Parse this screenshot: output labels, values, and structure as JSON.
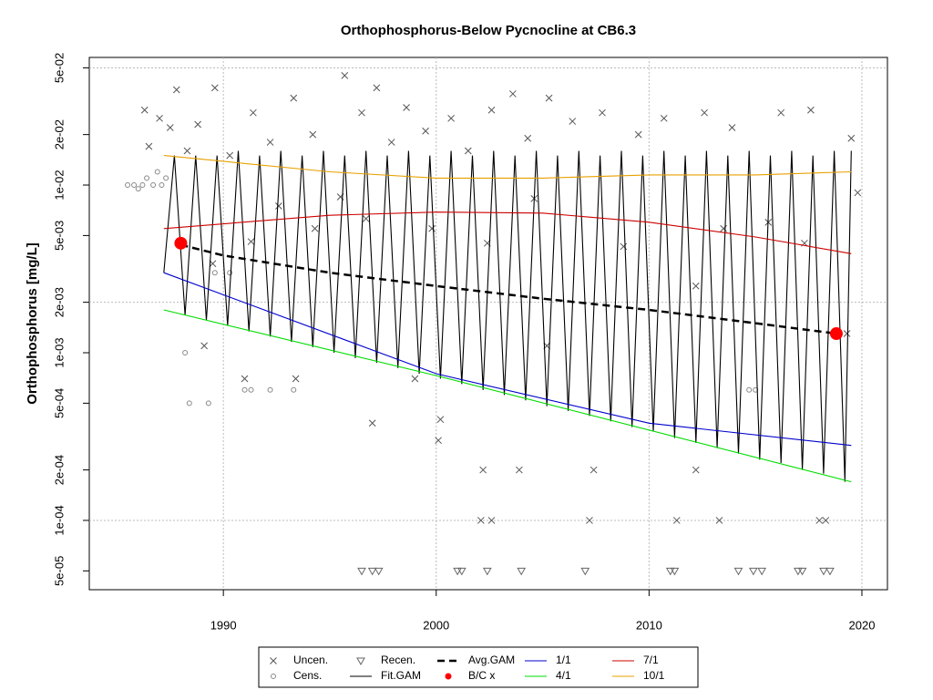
{
  "chart_data": {
    "type": "line",
    "title": "Orthophosphorus-Below Pycnocline at CB6.3",
    "y_label": "Orthophosphorus [mg/L]",
    "log_y": true,
    "grid": true,
    "xlim": [
      1983.7,
      2021.2
    ],
    "xticks": [
      1990,
      2000,
      2010,
      2020
    ],
    "ylim": [
      3.86e-05,
      0.0577
    ],
    "yticks": [
      {
        "value": 5e-05,
        "label": "5e-05"
      },
      {
        "value": 0.0001,
        "label": "1e-04"
      },
      {
        "value": 0.0002,
        "label": "2e-04"
      },
      {
        "value": 0.0005,
        "label": "5e-04"
      },
      {
        "value": 0.001,
        "label": "1e-03"
      },
      {
        "value": 0.002,
        "label": "2e-03"
      },
      {
        "value": 0.005,
        "label": "5e-03"
      },
      {
        "value": 0.01,
        "label": "1e-02"
      },
      {
        "value": 0.02,
        "label": "2e-02"
      },
      {
        "value": 0.05,
        "label": "5e-02"
      }
    ],
    "series": [
      {
        "name": "Uncen.",
        "color": "#555555",
        "mark": "x",
        "x": [
          1986.3,
          1986.5,
          1987,
          1987.5,
          1987.8,
          1988.3,
          1988.8,
          1989.6,
          1990.3,
          1991.4,
          1992.2,
          1993.3,
          1994.2,
          1995.7,
          1996.5,
          1997.2,
          1997.9,
          1998.6,
          1999.5,
          2000.7,
          2001.5,
          2002.6,
          2003.6,
          2004.3,
          2005.3,
          2006.4,
          2007.8,
          2009.5,
          2010.7,
          2012.6,
          2013.9,
          2016.2,
          2017.6,
          2019.5,
          1989.1,
          1991.0,
          1993.4,
          1997.0,
          1999.0,
          2000.2,
          2000.1,
          2002.2,
          2002.1,
          2002.6,
          2003.9,
          2007.2,
          2007.4,
          2011.3,
          2012.2,
          2013.3,
          2018.0,
          2018.3,
          1989.5,
          1991.3,
          1994.3,
          1996.7,
          1999.8,
          2002.4,
          2005.2,
          2008.8,
          2012.2,
          2015.6,
          2019.3,
          1992.6,
          1995.5,
          2004.6,
          2013.5,
          2017.3,
          2019.8
        ],
        "values": [
          0.028,
          0.017,
          0.025,
          0.022,
          0.037,
          0.016,
          0.023,
          0.038,
          0.015,
          0.027,
          0.018,
          0.033,
          0.02,
          0.045,
          0.027,
          0.038,
          0.018,
          0.029,
          0.021,
          0.025,
          0.016,
          0.028,
          0.035,
          0.019,
          0.033,
          0.024,
          0.027,
          0.02,
          0.025,
          0.027,
          0.022,
          0.027,
          0.028,
          0.019,
          0.0011,
          0.0007,
          0.0007,
          0.00038,
          0.0007,
          0.0004,
          0.0003,
          0.0002,
          0.0001,
          0.0001,
          0.0002,
          0.0001,
          0.0002,
          0.0001,
          0.0002,
          0.0001,
          0.0001,
          0.0001,
          0.0034,
          0.0046,
          0.0055,
          0.0063,
          0.0055,
          0.0045,
          0.0011,
          0.0043,
          0.0025,
          0.006,
          0.0013,
          0.0075,
          0.0085,
          0.0083,
          0.0055,
          0.0045,
          0.009
        ]
      },
      {
        "name": "Cens.",
        "color": "#888888",
        "mark": "circle",
        "x": [
          1985.5,
          1985.8,
          1986.0,
          1986.2,
          1986.4,
          1986.7,
          1986.9,
          1987.1,
          1987.3,
          1988.2,
          1988.4,
          1989.3,
          1989.6,
          1990.3,
          1991.0,
          1991.3,
          1992.2,
          1993.3,
          2014.7,
          2015.0
        ],
        "values": [
          0.01,
          0.01,
          0.0095,
          0.01,
          0.011,
          0.01,
          0.012,
          0.01,
          0.011,
          0.001,
          0.0005,
          0.0005,
          0.003,
          0.003,
          0.0006,
          0.0006,
          0.0006,
          0.0006,
          0.0006,
          0.0006
        ]
      },
      {
        "name": "Recen.",
        "color": "#666666",
        "mark": "triangle",
        "x": [
          1996.5,
          1997.0,
          1997.3,
          2001.0,
          2001.2,
          2002.4,
          2004.0,
          2007.0,
          2011.0,
          2011.2,
          2014.2,
          2014.9,
          2015.3,
          2017.0,
          2017.2,
          2018.2,
          2018.5
        ],
        "values": [
          5e-05,
          5e-05,
          5e-05,
          5e-05,
          5e-05,
          5e-05,
          5e-05,
          5e-05,
          5e-05,
          5e-05,
          5e-05,
          5e-05,
          5e-05,
          5e-05,
          5e-05,
          5e-05,
          5e-05
        ]
      },
      {
        "name": "Fit.GAM",
        "color": "#000000",
        "mark": "line",
        "x": [
          1987.2,
          1987.7,
          1988.2,
          1988.7,
          1989.2,
          1989.7,
          1990.2,
          1990.7,
          1991.2,
          1991.7,
          1992.2,
          1992.7,
          1993.2,
          1993.7,
          1994.2,
          1994.7,
          1995.2,
          1995.7,
          1996.2,
          1996.7,
          1997.2,
          1997.7,
          1998.2,
          1998.7,
          1999.2,
          1999.7,
          2000.2,
          2000.7,
          2001.2,
          2001.7,
          2002.2,
          2002.7,
          2003.2,
          2003.7,
          2004.2,
          2004.7,
          2005.2,
          2005.7,
          2006.2,
          2006.7,
          2007.2,
          2007.7,
          2008.2,
          2008.7,
          2009.2,
          2009.7,
          2010.2,
          2010.7,
          2011.2,
          2011.7,
          2012.2,
          2012.7,
          2013.2,
          2013.7,
          2014.2,
          2014.7,
          2015.2,
          2015.7,
          2016.2,
          2016.7,
          2017.2,
          2017.7,
          2018.2,
          2018.7,
          2019.2,
          2019.5
        ],
        "values": [
          0.003,
          0.015,
          0.00167,
          0.015,
          0.00156,
          0.015,
          0.00145,
          0.016,
          0.00134,
          0.015,
          0.00125,
          0.016,
          0.00116,
          0.015,
          0.00108,
          0.016,
          0.001,
          0.015,
          0.00093,
          0.016,
          0.00087,
          0.015,
          0.00081,
          0.016,
          0.00075,
          0.015,
          0.0007,
          0.016,
          0.00065,
          0.015,
          0.0006,
          0.016,
          0.00056,
          0.015,
          0.00052,
          0.016,
          0.00048,
          0.015,
          0.00045,
          0.016,
          0.00042,
          0.015,
          0.00039,
          0.016,
          0.00036,
          0.015,
          0.00034,
          0.016,
          0.00031,
          0.015,
          0.00029,
          0.016,
          0.00027,
          0.015,
          0.00025,
          0.016,
          0.00023,
          0.015,
          0.00022,
          0.016,
          0.0002,
          0.015,
          0.00019,
          0.016,
          0.00017,
          0.016
        ]
      },
      {
        "name": "Avg.GAM",
        "color": "#000000",
        "mark": "dashed",
        "x": [
          1988,
          1990,
          1995,
          2000,
          2005,
          2010,
          2015,
          2018.8
        ],
        "values": [
          0.0044,
          0.0038,
          0.003,
          0.0025,
          0.0021,
          0.0018,
          0.0015,
          0.0013
        ]
      },
      {
        "name": "B/C x",
        "color": "#ff0000",
        "mark": "dot",
        "x": [
          1988,
          2018.8
        ],
        "values": [
          0.0045,
          0.0013
        ]
      },
      {
        "name": "1/1",
        "color": "#0000cd",
        "mark": "line",
        "x": [
          1987.2,
          2000,
          2010,
          2019.5
        ],
        "values": [
          0.003,
          0.00075,
          0.00038,
          0.00028
        ]
      },
      {
        "name": "4/1",
        "color": "#00dd00",
        "mark": "line",
        "x": [
          1987.2,
          2000,
          2019.5
        ],
        "values": [
          0.0018,
          0.00073,
          0.00017
        ]
      },
      {
        "name": "7/1",
        "color": "#cc0000",
        "mark": "line",
        "x": [
          1987.2,
          1995,
          2000,
          2005,
          2010,
          2015,
          2019.5
        ],
        "values": [
          0.0055,
          0.0066,
          0.0069,
          0.0068,
          0.006,
          0.0049,
          0.0039
        ]
      },
      {
        "name": "10/1",
        "color": "#e8a000",
        "mark": "line",
        "x": [
          1987.2,
          1995,
          2000,
          2005,
          2010,
          2015,
          2019.5
        ],
        "values": [
          0.015,
          0.012,
          0.011,
          0.011,
          0.0115,
          0.0115,
          0.012
        ]
      }
    ]
  }
}
